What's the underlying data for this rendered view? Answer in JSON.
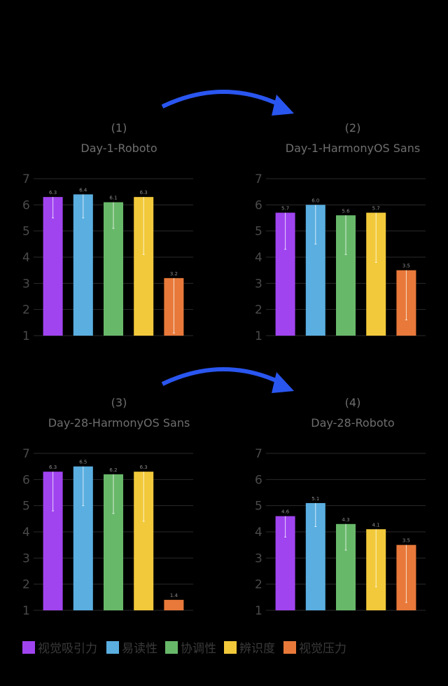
{
  "chart_data": [
    {
      "type": "bar",
      "number": "(1)",
      "title": "Day-1-Roboto",
      "ylim": [
        1,
        7
      ],
      "yticks": [
        1,
        2,
        3,
        4,
        5,
        6,
        7
      ],
      "grid": true,
      "values": [
        6.3,
        6.4,
        6.1,
        6.3,
        3.2
      ],
      "error_low": [
        5.5,
        5.5,
        5.1,
        4.1,
        1.1
      ]
    },
    {
      "type": "bar",
      "number": "(2)",
      "title": "Day-1-HarmonyOS Sans",
      "ylim": [
        1,
        7
      ],
      "yticks": [
        1,
        2,
        3,
        4,
        5,
        6,
        7
      ],
      "grid": true,
      "values": [
        5.7,
        6.0,
        5.6,
        5.7,
        3.5
      ],
      "error_low": [
        4.3,
        4.5,
        4.1,
        3.8,
        1.6
      ]
    },
    {
      "type": "bar",
      "number": "(3)",
      "title": "Day-28-HarmonyOS Sans",
      "ylim": [
        1,
        7
      ],
      "yticks": [
        1,
        2,
        3,
        4,
        5,
        6,
        7
      ],
      "grid": true,
      "values": [
        6.3,
        6.5,
        6.2,
        6.3,
        1.4
      ],
      "error_low": [
        4.8,
        5.0,
        4.7,
        4.4,
        1.4
      ]
    },
    {
      "type": "bar",
      "number": "(4)",
      "title": "Day-28-Roboto",
      "ylim": [
        1,
        7
      ],
      "yticks": [
        1,
        2,
        3,
        4,
        5,
        6,
        7
      ],
      "grid": true,
      "values": [
        4.6,
        5.1,
        4.3,
        4.1,
        3.5
      ],
      "error_low": [
        3.8,
        4.2,
        3.3,
        1.9,
        1.3
      ]
    }
  ],
  "series": [
    {
      "name": "视觉吸引力",
      "color": "#a044f0"
    },
    {
      "name": "易读性",
      "color": "#5aaee0"
    },
    {
      "name": "协调性",
      "color": "#68b86a"
    },
    {
      "name": "辨识度",
      "color": "#f2c93a"
    },
    {
      "name": "视觉压力",
      "color": "#e8793a"
    }
  ],
  "legend_position": "bottom",
  "arrow_color": "#2a56f0",
  "background": "#000000"
}
